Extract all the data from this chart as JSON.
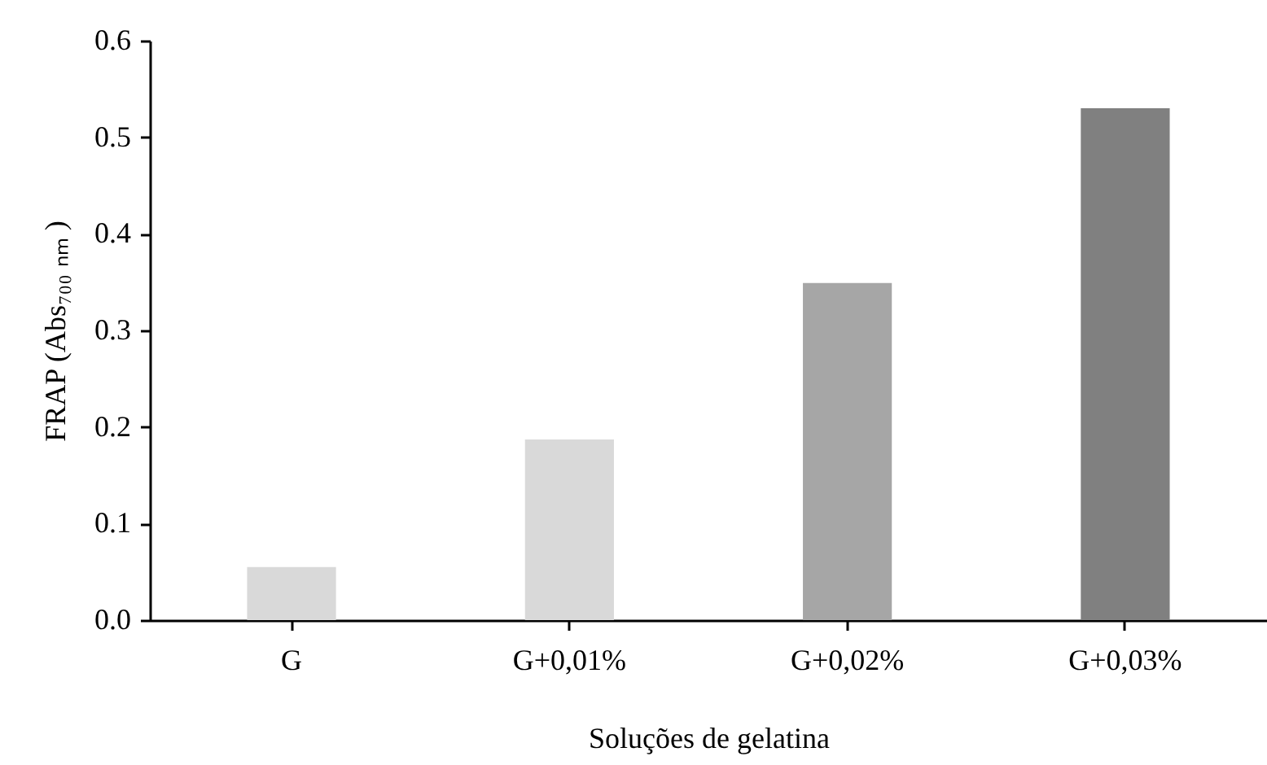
{
  "chart_data": {
    "type": "bar",
    "xlabel": "Soluções de gelatina",
    "ylabel": "FRAP (Abs₇₀₀ ₙₘ )",
    "categories": [
      "G",
      "G+0,01%",
      "G+0,02%",
      "G+0,03%"
    ],
    "values": [
      0.055,
      0.187,
      0.349,
      0.53
    ],
    "colors": [
      "#d9d9d9",
      "#d9d9d9",
      "#a6a6a6",
      "#808080"
    ],
    "ylim": [
      0,
      0.6
    ],
    "yticks": [
      {
        "value": 0,
        "label": "0.0"
      },
      {
        "value": 0.1,
        "label": "0.1"
      },
      {
        "value": 0.2,
        "label": "0.2"
      },
      {
        "value": 0.3,
        "label": "0.3"
      },
      {
        "value": 0.4,
        "label": "0.4"
      },
      {
        "value": 0.5,
        "label": "0.5"
      },
      {
        "value": 0.6,
        "label": "0.6"
      }
    ],
    "grid": false
  }
}
